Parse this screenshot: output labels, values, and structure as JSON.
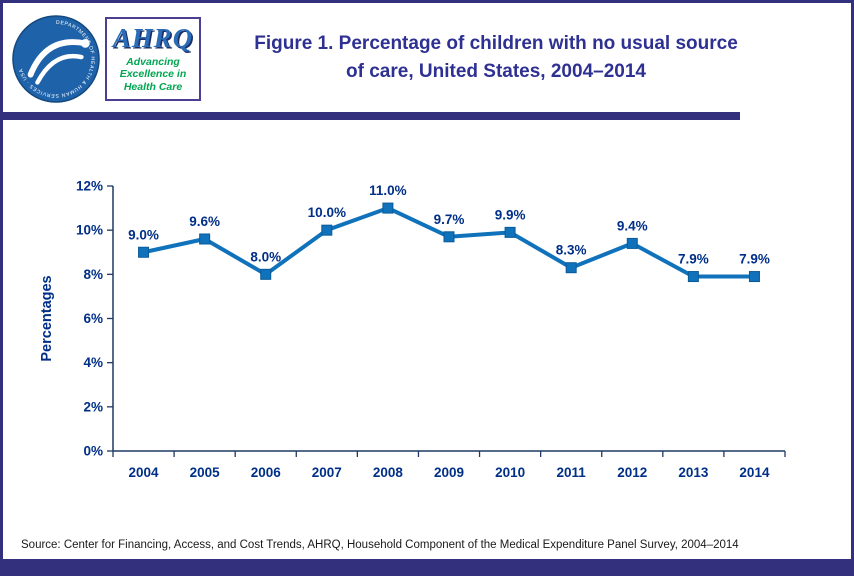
{
  "header": {
    "title_line1": "Figure 1. Percentage of children with no usual source",
    "title_line2": "of care, United States, 2004–2014",
    "logos": {
      "hhs_ring_text": "DEPARTMENT OF HEALTH & HUMAN SERVICES · USA",
      "ahrq_name": "AHRQ",
      "ahrq_tagline_line1": "Advancing",
      "ahrq_tagline_line2": "Excellence in",
      "ahrq_tagline_line3": "Health Care"
    }
  },
  "chart_data": {
    "type": "line",
    "categories": [
      "2004",
      "2005",
      "2006",
      "2007",
      "2008",
      "2009",
      "2010",
      "2011",
      "2012",
      "2013",
      "2014"
    ],
    "values": [
      9.0,
      9.6,
      8.0,
      10.0,
      11.0,
      9.7,
      9.9,
      8.3,
      9.4,
      7.9,
      7.9
    ],
    "point_labels": [
      "9.0%",
      "9.6%",
      "8.0%",
      "10.0%",
      "11.0%",
      "9.7%",
      "9.9%",
      "8.3%",
      "9.4%",
      "7.9%",
      "7.9%"
    ],
    "title": "Figure 1. Percentage of children with no usual source of care, United States, 2004–2014",
    "xlabel": "",
    "ylabel": "Percentages",
    "ylim": [
      0,
      12
    ],
    "ytick_values": [
      0,
      2,
      4,
      6,
      8,
      10,
      12
    ],
    "ytick_labels": [
      "0%",
      "2%",
      "4%",
      "6%",
      "8%",
      "10%",
      "12%"
    ],
    "grid": false,
    "legend": false,
    "line_color": "#1072BA",
    "marker_edge_color": "#0A5A99",
    "label_color": "#002F87",
    "axis_color": "#1F3864"
  },
  "footer": {
    "source": "Source: Center for Financing, Access, and Cost Trends, AHRQ, Household Component of the Medical Expenditure Panel Survey, 2004–2014"
  },
  "colors": {
    "accent": "#33317E",
    "title": "#2E3192",
    "hhs_blue": "#1E62A9",
    "ahrq_blue": "#2B6CB8",
    "ahrq_green": "#00A651"
  }
}
